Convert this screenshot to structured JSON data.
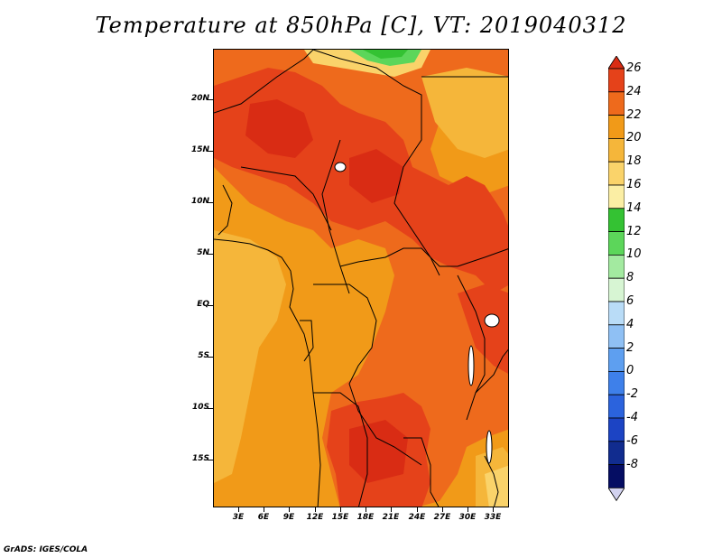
{
  "title": "Temperature at 850hPa [C], VT: 2019040312",
  "credit": "GrADS: IGES/COLA",
  "y_axis_labels": [
    "20N",
    "15N",
    "10N",
    "5N",
    "EQ",
    "5S",
    "10S",
    "15S"
  ],
  "x_axis_labels": [
    "3E",
    "6E",
    "9E",
    "12E",
    "15E",
    "18E",
    "21E",
    "24E",
    "27E",
    "30E",
    "33E"
  ],
  "colorbar": {
    "labels": [
      "26",
      "24",
      "22",
      "20",
      "18",
      "16",
      "14",
      "12",
      "10",
      "8",
      "6",
      "4",
      "2",
      "0",
      "-2",
      "-4",
      "-6",
      "-8"
    ],
    "colors": [
      "#d92c14",
      "#e5421a",
      "#ee6a1c",
      "#f19a18",
      "#f5b63a",
      "#fad36a",
      "#fbeea4",
      "#34c233",
      "#5cd65a",
      "#a3eaa0",
      "#d7f5d3",
      "#b9dcf7",
      "#8fc0f4",
      "#5e9ff0",
      "#3e80ea",
      "#2b63dd",
      "#1c44c4",
      "#112c8f",
      "#050d63",
      "#d2d2ef"
    ]
  },
  "map_colors": {
    "c26": "#d92c14",
    "c24": "#e5421a",
    "c22": "#ee6a1c",
    "c20": "#f19a18",
    "c18": "#f5b63a",
    "c16": "#fad36a",
    "c12": "#34c233",
    "c10": "#5cd65a"
  }
}
